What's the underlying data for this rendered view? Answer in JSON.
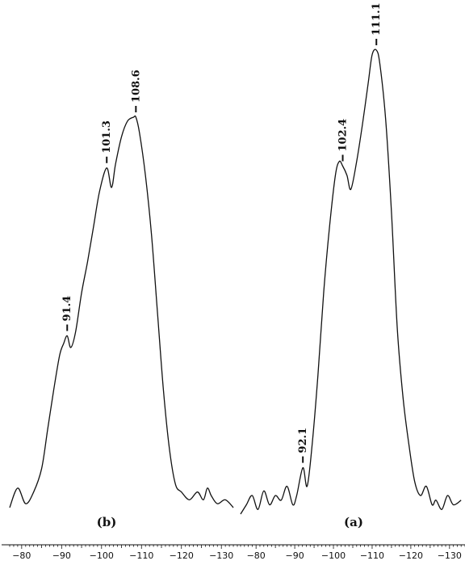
{
  "chart_data": [
    {
      "type": "line",
      "panel_label": "(b)",
      "xlim": [
        -77,
        -134
      ],
      "ylim": [
        0,
        1
      ],
      "x_ticks": [
        -80,
        -90,
        -100,
        -110,
        -120,
        -130
      ],
      "x_tick_labels": [
        "−80",
        "−90",
        "−100",
        "−110",
        "−120",
        "−130"
      ],
      "series": [
        {
          "x": [
            -77,
            -79,
            -81,
            -83,
            -85,
            -86.5,
            -88,
            -89.5,
            -90.5,
            -91.4,
            -92.3,
            -93.5,
            -95,
            -96.5,
            -98,
            -99.5,
            -101.3,
            -102.5,
            -103.5,
            -105,
            -106.5,
            -108,
            -108.6,
            -109.5,
            -111,
            -112.5,
            -114,
            -115.5,
            -117,
            -118.5,
            -120,
            -122,
            -124,
            -125.5,
            -126.5,
            -127.5,
            -129,
            -131,
            -133
          ],
          "y": [
            0.0,
            0.05,
            0.01,
            0.04,
            0.1,
            0.2,
            0.3,
            0.39,
            0.42,
            0.44,
            0.41,
            0.45,
            0.55,
            0.63,
            0.72,
            0.81,
            0.87,
            0.82,
            0.88,
            0.95,
            0.99,
            1.0,
            1.0,
            0.96,
            0.85,
            0.7,
            0.5,
            0.3,
            0.15,
            0.06,
            0.04,
            0.02,
            0.04,
            0.02,
            0.05,
            0.03,
            0.01,
            0.02,
            0.0
          ]
        }
      ],
      "peak_labels": [
        {
          "x": -91.4,
          "label": "91.4"
        },
        {
          "x": -101.3,
          "label": "101.3"
        },
        {
          "x": -108.6,
          "label": "108.6"
        }
      ]
    },
    {
      "type": "line",
      "panel_label": "(a)",
      "xlim": [
        -76,
        -134
      ],
      "ylim": [
        0,
        1
      ],
      "x_ticks": [
        -80,
        -90,
        -100,
        -110,
        -120,
        -130
      ],
      "x_tick_labels": [
        "−80",
        "−90",
        "−100",
        "−110",
        "−120",
        "−130"
      ],
      "series": [
        {
          "x": [
            -76,
            -77.5,
            -79,
            -80.5,
            -82,
            -83.5,
            -85,
            -86.5,
            -88,
            -89.5,
            -90.5,
            -92.1,
            -93.2,
            -94.5,
            -96,
            -97.5,
            -99,
            -100.5,
            -101.5,
            -102.4,
            -103.5,
            -104.5,
            -106,
            -107.5,
            -109,
            -110,
            -111.1,
            -112,
            -113.5,
            -115,
            -116.5,
            -118,
            -119.5,
            -121,
            -122.5,
            -124,
            -125.5,
            -126.5,
            -128,
            -129.5,
            -131,
            -133
          ],
          "y": [
            0.0,
            0.02,
            0.04,
            0.01,
            0.05,
            0.02,
            0.04,
            0.03,
            0.06,
            0.02,
            0.04,
            0.1,
            0.06,
            0.15,
            0.3,
            0.48,
            0.62,
            0.73,
            0.76,
            0.75,
            0.73,
            0.7,
            0.76,
            0.84,
            0.93,
            0.99,
            1.0,
            0.97,
            0.85,
            0.65,
            0.4,
            0.25,
            0.15,
            0.07,
            0.04,
            0.06,
            0.02,
            0.03,
            0.01,
            0.04,
            0.02,
            0.03
          ]
        }
      ],
      "peak_labels": [
        {
          "x": -92.1,
          "label": "92.1"
        },
        {
          "x": -102.4,
          "label": "102.4"
        },
        {
          "x": -111.1,
          "label": "111.1"
        }
      ]
    }
  ]
}
